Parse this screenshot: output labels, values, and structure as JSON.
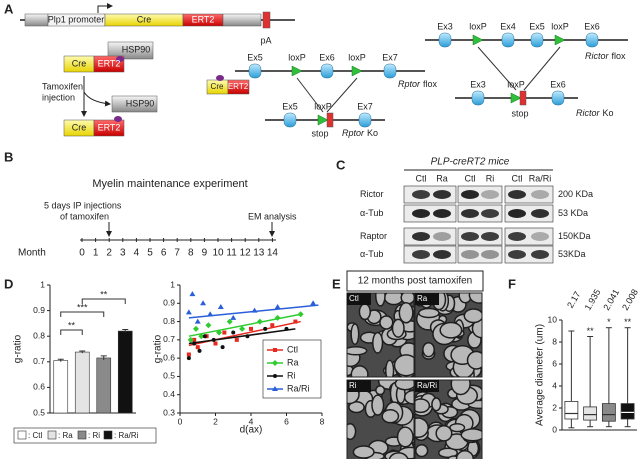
{
  "panel_labels": [
    "A",
    "B",
    "C",
    "D",
    "E",
    "F"
  ],
  "panel_a": {
    "construct": {
      "promoter": "Plp1 promoter",
      "cre": "Cre",
      "ert2": "ERT2",
      "pa": "pA"
    },
    "complex": {
      "cre": "Cre",
      "ert2": "ERT2",
      "hsp90": "HSP90"
    },
    "injection": [
      "Tamoxifen",
      "injection"
    ],
    "released": {
      "hsp90": "HSP90",
      "cre": "Cre",
      "ert2": "ERT2"
    },
    "rptor": {
      "cre": "Cre",
      "ert2": "ERT2",
      "flox_elements": [
        "Ex5",
        "loxP",
        "Ex6",
        "loxP",
        "Ex7"
      ],
      "flox_label": [
        "Rptor",
        "flox"
      ],
      "ko_elements": [
        "Ex5",
        "loxP",
        "Ex7"
      ],
      "stop": "stop",
      "ko_label": [
        "Rptor",
        "Ko"
      ]
    },
    "rictor": {
      "flox_elements": [
        "Ex3",
        "loxP",
        "Ex4",
        "Ex5",
        "loxP",
        "Ex6"
      ],
      "flox_label": [
        "Rictor",
        "flox"
      ],
      "ko_elements": [
        "Ex3",
        "loxP",
        "Ex6"
      ],
      "stop": "stop",
      "ko_label": [
        "Rictor",
        "Ko"
      ]
    }
  },
  "panel_b": {
    "title": "Myelin maintenance experiment",
    "injection_note": [
      "5 days IP injections",
      "of tamoxifen"
    ],
    "analysis_note": "EM analysis",
    "axis_label": "Month",
    "months": [
      "0",
      "1",
      "2",
      "3",
      "4",
      "5",
      "6",
      "7",
      "8",
      "9",
      "10",
      "11",
      "12",
      "13",
      "14"
    ]
  },
  "panel_c": {
    "title": "PLP-creRT2 mice",
    "lanes": [
      "Ctl",
      "Ra",
      "Ctl",
      "Ri",
      "Ctl",
      "Ra/Ri"
    ],
    "rows": [
      {
        "protein": "Rictor",
        "size": "200 KDa"
      },
      {
        "protein": "α-Tub",
        "size": "53 KDa"
      },
      {
        "protein": "Raptor",
        "size": "150KDa"
      },
      {
        "protein": "α-Tub",
        "size": "53KDa"
      }
    ]
  },
  "panel_e": {
    "title": "12 months post tamoxifen",
    "images": [
      "Ctl",
      "Ra",
      "Ri",
      "Ra/Ri"
    ]
  },
  "chart_data": [
    {
      "type": "bar",
      "ylabel": "g-ratio",
      "categories": [
        "Ctl",
        "Ra",
        "Ri",
        "Ra/Ri"
      ],
      "values": [
        0.705,
        0.738,
        0.715,
        0.82
      ],
      "errors": [
        0.005,
        0.004,
        0.008,
        0.006
      ],
      "colors": [
        "#ffffff",
        "#e4e4e4",
        "#8a8a8a",
        "#111111"
      ],
      "ylim": [
        0.5,
        1
      ],
      "yticks": [
        0.5,
        0.6,
        0.7,
        0.8,
        0.9,
        1
      ],
      "annotations": [
        "**",
        "***",
        "**"
      ],
      "legend": [
        ": Ctl",
        ": Ra",
        ": Ri",
        ": Ra/Ri"
      ]
    },
    {
      "type": "scatter",
      "xlabel": "d(ax)",
      "ylabel": "g-ratio",
      "xlim": [
        0,
        8
      ],
      "ylim": [
        0.3,
        1
      ],
      "xticks": [
        0,
        2,
        4,
        6,
        8
      ],
      "yticks": [
        0.3,
        0.4,
        0.5,
        0.6,
        0.7,
        0.8,
        0.9,
        1
      ],
      "series": [
        {
          "name": "Ctl",
          "color": "#e8281e",
          "marker": "square",
          "x": [
            0.5,
            0.8,
            1.0,
            1.5,
            2.0,
            2.5,
            3.2,
            4.0,
            5.2,
            6.5
          ],
          "values": [
            0.62,
            0.7,
            0.66,
            0.72,
            0.68,
            0.74,
            0.7,
            0.76,
            0.78,
            0.8
          ],
          "trend_x": [
            0.5,
            6.8
          ],
          "trend_y": [
            0.67,
            0.8
          ]
        },
        {
          "name": "Ra",
          "color": "#2fcc2f",
          "marker": "diamond",
          "x": [
            0.6,
            0.9,
            1.2,
            1.6,
            2.2,
            2.8,
            3.5,
            4.5,
            5.5,
            6.8
          ],
          "values": [
            0.7,
            0.76,
            0.72,
            0.78,
            0.74,
            0.8,
            0.76,
            0.8,
            0.82,
            0.84
          ],
          "trend_x": [
            0.5,
            6.8
          ],
          "trend_y": [
            0.72,
            0.84
          ]
        },
        {
          "name": "Ri",
          "color": "#111111",
          "marker": "circle",
          "x": [
            0.5,
            0.8,
            1.1,
            1.4,
            1.9,
            2.4,
            3.0,
            3.8,
            4.8,
            6.0
          ],
          "values": [
            0.6,
            0.68,
            0.64,
            0.72,
            0.7,
            0.66,
            0.74,
            0.72,
            0.76,
            0.76
          ],
          "trend_x": [
            0.5,
            6.5
          ],
          "trend_y": [
            0.68,
            0.76
          ]
        },
        {
          "name": "Ra/Ri",
          "color": "#2b5fd9",
          "marker": "triangle",
          "x": [
            0.5,
            0.7,
            1.0,
            1.3,
            1.7,
            2.3,
            3.0,
            4.2,
            5.5,
            7.5
          ],
          "values": [
            0.85,
            0.95,
            0.8,
            0.9,
            0.84,
            0.88,
            0.82,
            0.86,
            0.88,
            0.9
          ],
          "trend_x": [
            0.5,
            7.8
          ],
          "trend_y": [
            0.82,
            0.89
          ]
        }
      ]
    },
    {
      "type": "box",
      "ylabel": "Average diameter (um)",
      "ylim": [
        0,
        10
      ],
      "yticks": [
        0,
        2,
        4,
        6,
        8,
        10
      ],
      "mean_labels": [
        "2.17",
        "1.935",
        "2.041",
        "2.008"
      ],
      "annotations": [
        null,
        "**",
        "*",
        "**"
      ],
      "boxes": [
        {
          "min": 0.2,
          "q1": 1.0,
          "median": 1.5,
          "q3": 2.6,
          "max": 9.0,
          "color": "#ffffff"
        },
        {
          "min": 0.3,
          "q1": 0.9,
          "median": 1.4,
          "q3": 2.1,
          "max": 8.5,
          "color": "#e4e4e4"
        },
        {
          "min": 0.3,
          "q1": 0.8,
          "median": 1.4,
          "q3": 2.4,
          "max": 9.3,
          "color": "#8a8a8a"
        },
        {
          "min": 0.3,
          "q1": 1.0,
          "median": 1.6,
          "q3": 2.4,
          "max": 9.3,
          "color": "#111111"
        }
      ]
    }
  ]
}
